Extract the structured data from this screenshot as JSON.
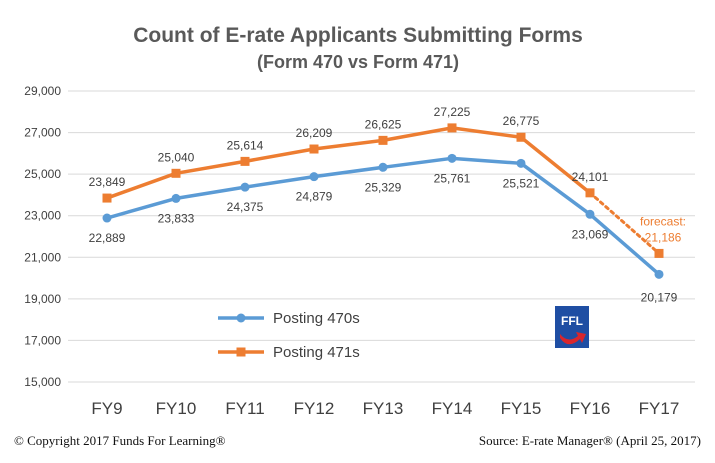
{
  "chart_data": {
    "type": "line",
    "title": "Count of E-rate Applicants Submitting Forms",
    "subtitle": "(Form 470 vs Form 471)",
    "categories": [
      "FY9",
      "FY10",
      "FY11",
      "FY12",
      "FY13",
      "FY14",
      "FY15",
      "FY16",
      "FY17"
    ],
    "ylim": [
      15000,
      29000
    ],
    "yticks": [
      "15,000",
      "17,000",
      "19,000",
      "21,000",
      "23,000",
      "25,000",
      "27,000",
      "29,000"
    ],
    "grid": true,
    "legend_position": "center-left",
    "series": [
      {
        "name": "Posting 470s",
        "color": "#5b9bd5",
        "marker": "circle",
        "values": [
          22889,
          23833,
          24375,
          24879,
          25329,
          25761,
          25521,
          23069,
          20179
        ],
        "labels": [
          "22,889",
          "23,833",
          "24,375",
          "24,879",
          "25,329",
          "25,761",
          "25,521",
          "23,069",
          "20,179"
        ]
      },
      {
        "name": "Posting 471s",
        "color": "#ed7d31",
        "marker": "square",
        "values": [
          23849,
          25040,
          25614,
          26209,
          26625,
          27225,
          26775,
          24101,
          21186
        ],
        "labels": [
          "23,849",
          "25,040",
          "25,614",
          "26,209",
          "26,625",
          "27,225",
          "26,775",
          "24,101",
          "21,186"
        ],
        "forecast_from_index": 7,
        "forecast_label": "forecast:"
      }
    ]
  },
  "logo": {
    "text": "FFL",
    "bg_color": "#1f4ea3",
    "arrow_color": "#d9262c"
  },
  "footer": {
    "copyright": "© Copyright 2017 Funds For Learning®",
    "source": "Source: E-rate Manager® (April 25, 2017)"
  }
}
